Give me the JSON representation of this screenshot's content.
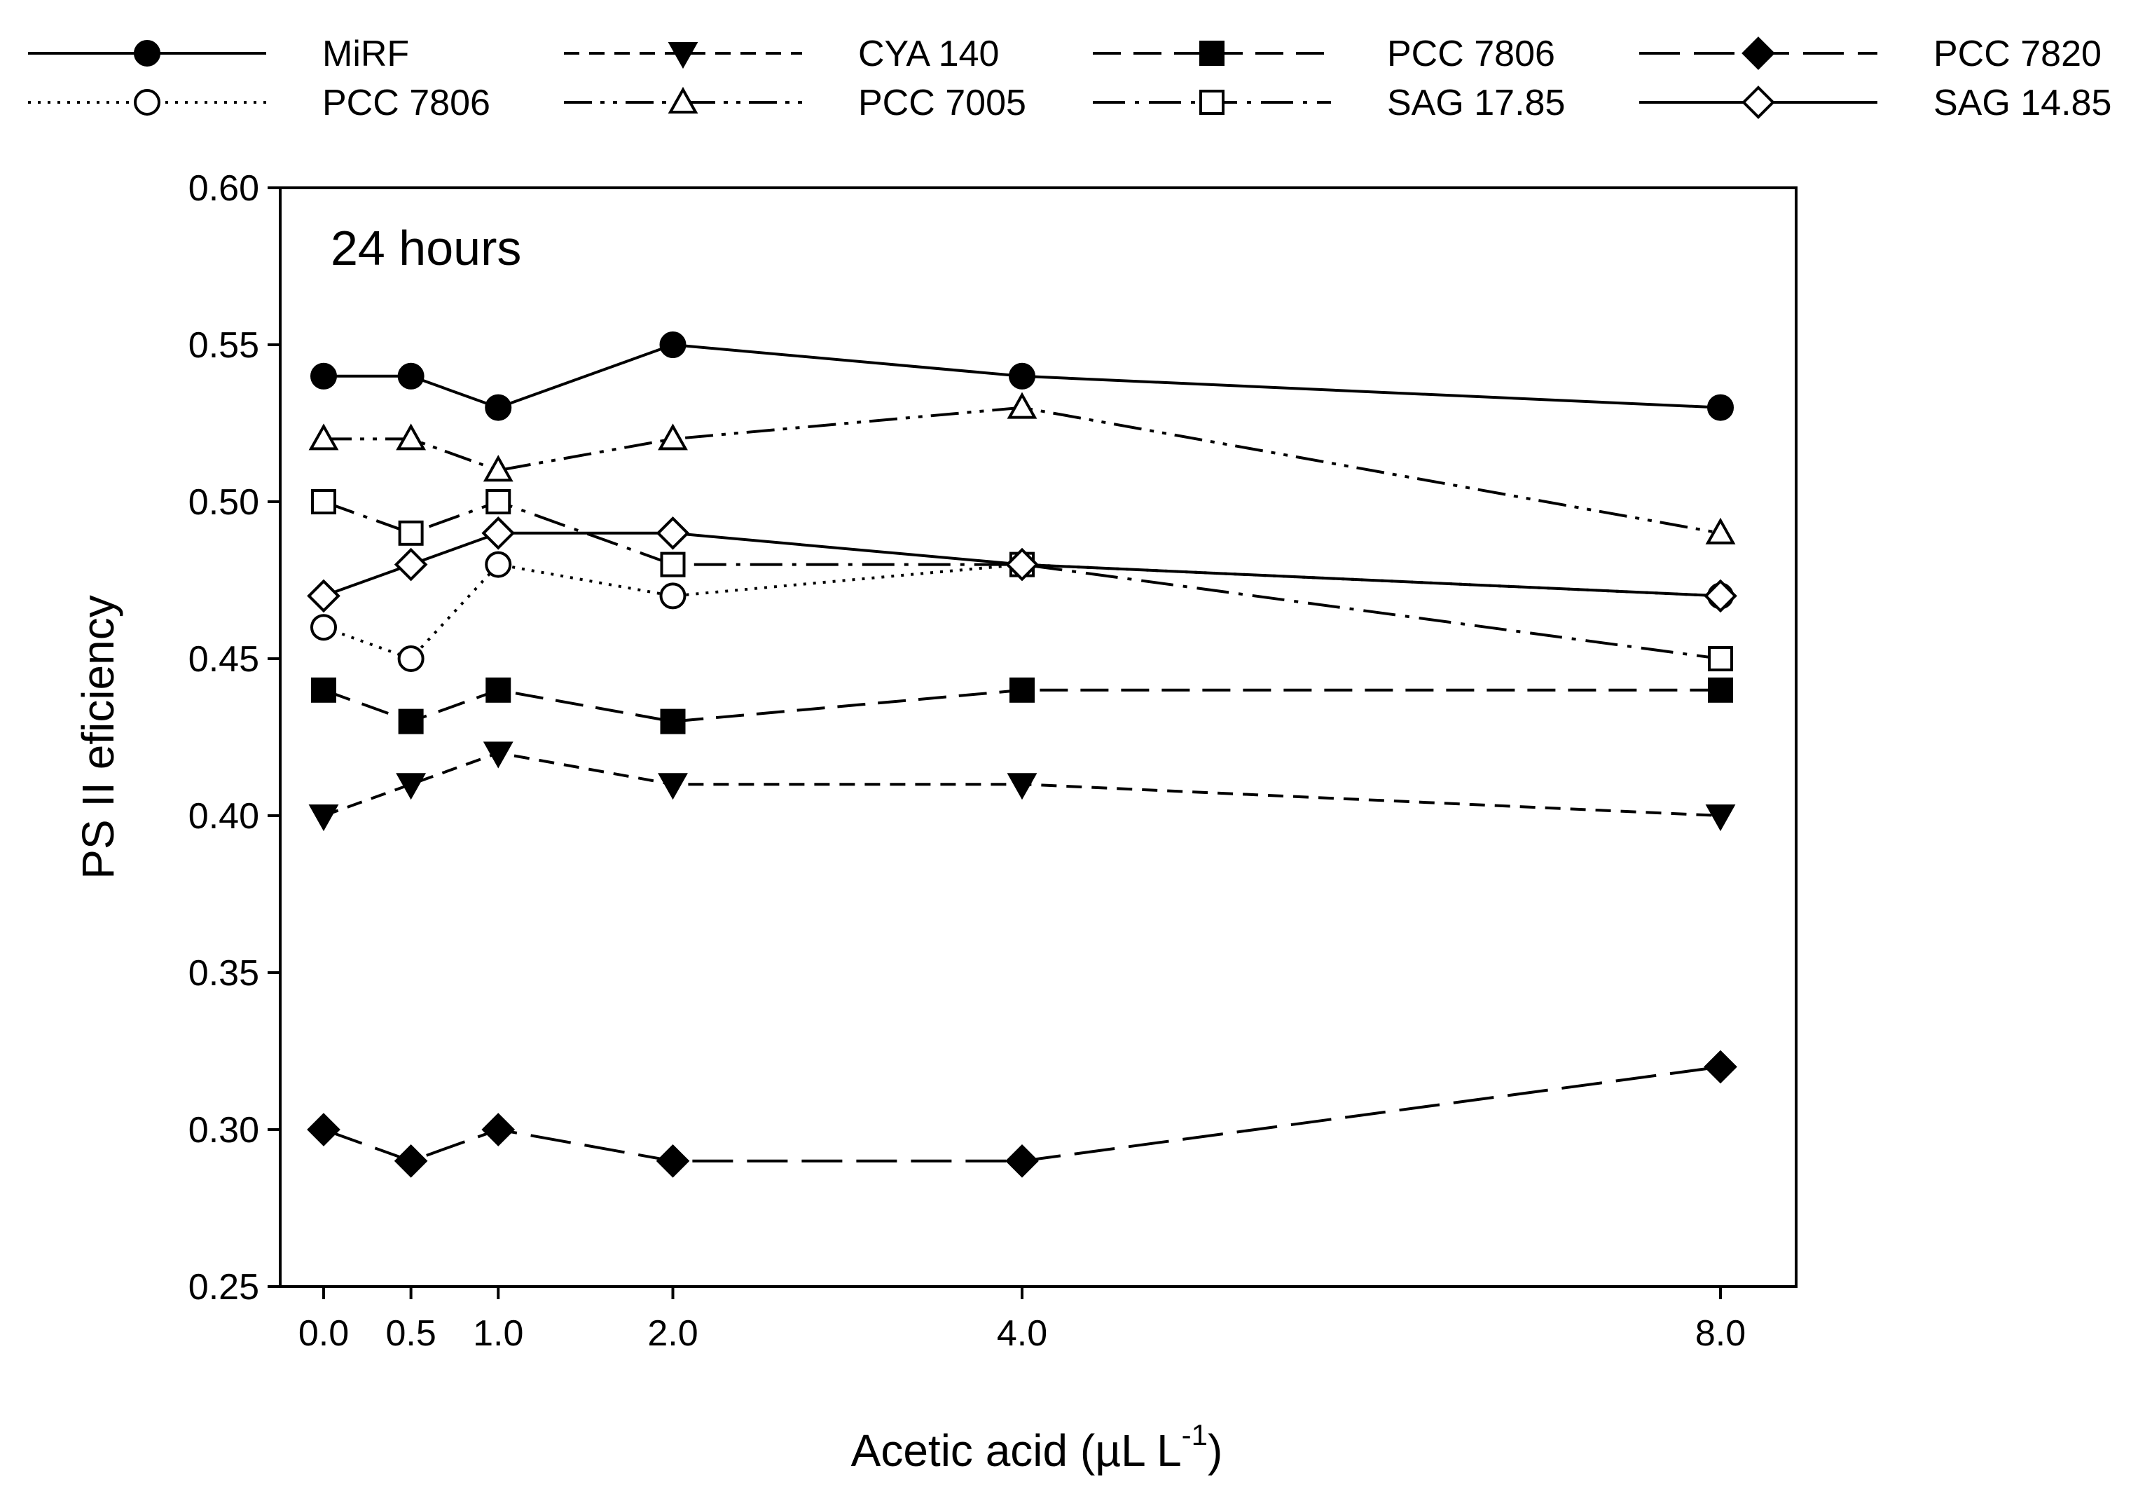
{
  "chart_data": {
    "type": "line",
    "annotation": "24 hours",
    "xlabel": "Acetic acid  (µL L",
    "xlabel_sup": "-1",
    "xlabel_end": ")",
    "ylabel": "PS II eficiency",
    "x": [
      0.0,
      0.5,
      1.0,
      2.0,
      4.0,
      8.0
    ],
    "x_tick_labels": [
      "0.0",
      "0.5",
      "1.0",
      "2.0",
      "4.0",
      "8.0"
    ],
    "ylim": [
      0.25,
      0.6
    ],
    "y_ticks": [
      0.25,
      0.3,
      0.35,
      0.4,
      0.45,
      0.5,
      0.55,
      0.6
    ],
    "y_tick_labels": [
      "0.25",
      "0.30",
      "0.35",
      "0.40",
      "0.45",
      "0.50",
      "0.55",
      "0.60"
    ],
    "legend_position": "top",
    "series": [
      {
        "name": "MiRF",
        "marker": "circle",
        "fill": "filled",
        "dash": "solid",
        "values": [
          0.54,
          0.54,
          0.53,
          0.55,
          0.54,
          0.53
        ]
      },
      {
        "name": "PCC 7806",
        "marker": "circle",
        "fill": "open",
        "dash": "dotted",
        "values": [
          0.46,
          0.45,
          0.48,
          0.47,
          0.48,
          0.47
        ]
      },
      {
        "name": "CYA 140",
        "marker": "triangle-down",
        "fill": "filled",
        "dash": "short-dash",
        "values": [
          0.4,
          0.41,
          0.42,
          0.41,
          0.41,
          0.4
        ]
      },
      {
        "name": "PCC 7005",
        "marker": "triangle-up",
        "fill": "open",
        "dash": "dash-dot-dot",
        "values": [
          0.52,
          0.52,
          0.51,
          0.52,
          0.53,
          0.49
        ]
      },
      {
        "name": "PCC 7806",
        "marker": "square",
        "fill": "filled",
        "dash": "medium-dash",
        "values": [
          0.44,
          0.43,
          0.44,
          0.43,
          0.44,
          0.44
        ]
      },
      {
        "name": "SAG 17.85",
        "marker": "square",
        "fill": "open",
        "dash": "dash-dot",
        "values": [
          0.5,
          0.49,
          0.5,
          0.48,
          0.48,
          0.45
        ]
      },
      {
        "name": "PCC 7820",
        "marker": "diamond",
        "fill": "filled",
        "dash": "long-dash",
        "values": [
          0.3,
          0.29,
          0.3,
          0.29,
          0.29,
          0.32
        ]
      },
      {
        "name": "SAG 14.85",
        "marker": "diamond",
        "fill": "open",
        "dash": "solid",
        "values": [
          0.47,
          0.48,
          0.49,
          0.49,
          0.48,
          0.47
        ]
      }
    ]
  }
}
